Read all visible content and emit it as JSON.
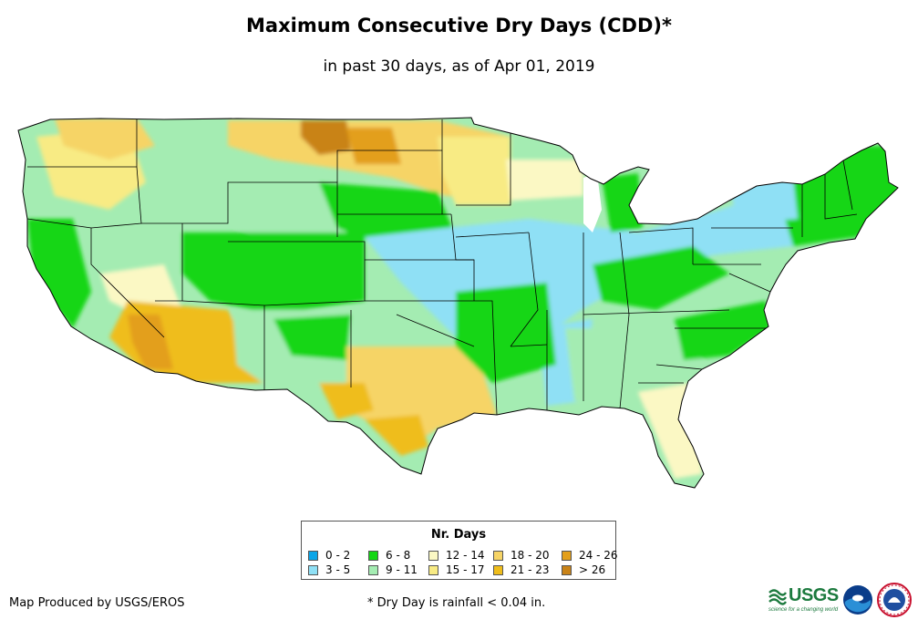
{
  "header": {
    "title": "Maximum Consecutive Dry Days (CDD)*",
    "subtitle": "in past 30 days, as of Apr 01, 2019"
  },
  "legend": {
    "title": "Nr. Days",
    "items": [
      {
        "label": "0 - 2",
        "color": "#0aa5e8"
      },
      {
        "label": "3 - 5",
        "color": "#8fe0f5"
      },
      {
        "label": "6 - 8",
        "color": "#13d613"
      },
      {
        "label": "9 - 11",
        "color": "#a4ecb2"
      },
      {
        "label": "12 - 14",
        "color": "#fbf8c4"
      },
      {
        "label": "15 - 17",
        "color": "#f8eb84"
      },
      {
        "label": "18 - 20",
        "color": "#f6d466"
      },
      {
        "label": "21 - 23",
        "color": "#efbd1b"
      },
      {
        "label": "24 - 26",
        "color": "#e39f1a"
      },
      {
        "label": "> 26",
        "color": "#c98318"
      }
    ]
  },
  "footer": {
    "credit": "Map Produced by USGS/EROS",
    "footnote": "* Dry Day is rainfall < 0.04 in."
  },
  "logos": {
    "usgs_text": "USGS",
    "usgs_tagline": "science for a changing world"
  },
  "icons": {
    "usgs": "usgs-logo-icon",
    "noaa": "noaa-logo-icon",
    "nws": "nws-logo-icon"
  }
}
